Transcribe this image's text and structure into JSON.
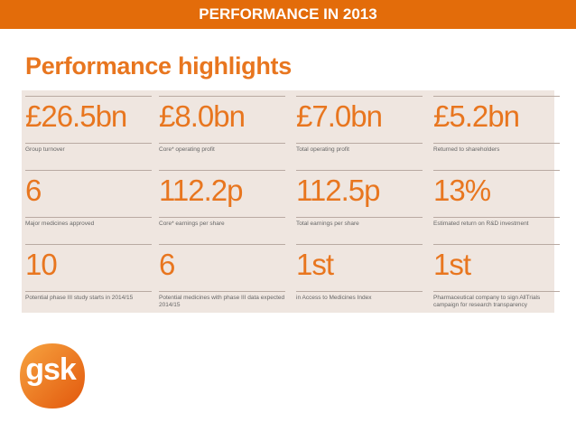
{
  "header": {
    "title": "PERFORMANCE IN 2013"
  },
  "section": {
    "title": "Performance highlights"
  },
  "highlights": [
    [
      {
        "value": "£26.5bn",
        "label": "Group turnover"
      },
      {
        "value": "£8.0bn",
        "label": "Core* operating profit"
      },
      {
        "value": "£7.0bn",
        "label": "Total operating profit"
      },
      {
        "value": "£5.2bn",
        "label": "Returned to shareholders"
      }
    ],
    [
      {
        "value": "6",
        "label": "Major medicines approved"
      },
      {
        "value": "112.2p",
        "label": "Core* earnings per share"
      },
      {
        "value": "112.5p",
        "label": "Total earnings per share"
      },
      {
        "value": "13%",
        "label": "Estimated return on R&D investment"
      }
    ],
    [
      {
        "value": "10",
        "label": "Potential phase III study starts in 2014/15"
      },
      {
        "value": "6",
        "label": "Potential medicines with phase III data expected 2014/15"
      },
      {
        "value": "1st",
        "label": "in Access to Medicines Index"
      },
      {
        "value": "1st",
        "label": "Pharmaceutical company to sign AllTrials campaign for research transparency"
      }
    ]
  ],
  "logo": {
    "text": "gsk"
  }
}
